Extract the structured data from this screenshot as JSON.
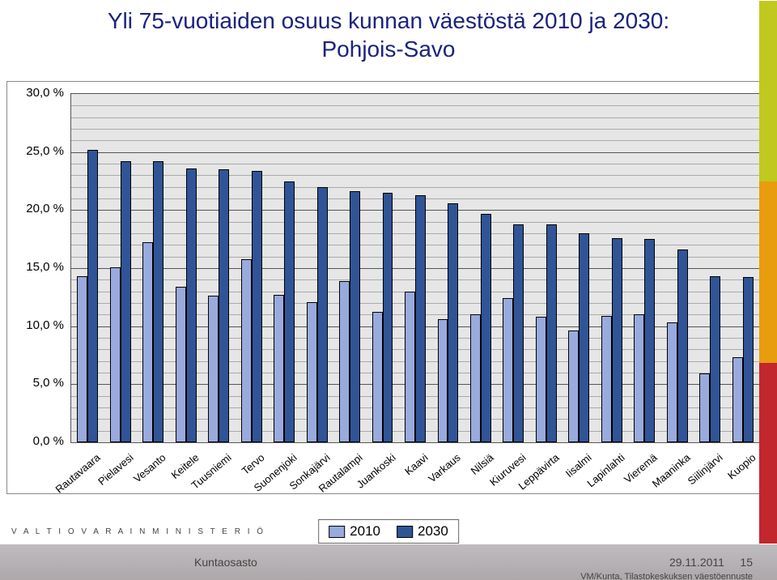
{
  "title_line1": "Yli 75-vuotiaiden osuus kunnan väestöstä 2010 ja 2030:",
  "title_line2": "Pohjois-Savo",
  "logo_text": "V A L T I O V A R A I N M I N I S T E R I Ö",
  "footer_left": "Kuntaosasto",
  "footer_date": "29.11.2011",
  "footer_page": "15",
  "footer_source": "VM/Kunta, Tilastokeskuksen väestöennuste",
  "chart": {
    "type": "bar",
    "y_min": 0,
    "y_max": 30,
    "y_tick_step": 5,
    "y_tick_labels": [
      "0,0 %",
      "5,0 %",
      "10,0 %",
      "15,0 %",
      "20,0 %",
      "25,0 %",
      "30,0 %"
    ],
    "y_minor_ticks": [
      1,
      2,
      3,
      4,
      6,
      7,
      8,
      9,
      11,
      12,
      13,
      14,
      16,
      17,
      18,
      19,
      21,
      22,
      23,
      24,
      26,
      27,
      28,
      29
    ],
    "plot_bg": "#e6e6e6",
    "axis_color": "#555555",
    "series": [
      {
        "label": "2010",
        "color": "#99aadd"
      },
      {
        "label": "2030",
        "color": "#305496"
      }
    ],
    "categories": [
      {
        "name": "Rautavaara",
        "v2010": 14.3,
        "v2030": 25.2
      },
      {
        "name": "Pielavesi",
        "v2010": 15.1,
        "v2030": 24.2
      },
      {
        "name": "Vesanto",
        "v2010": 17.2,
        "v2030": 24.2
      },
      {
        "name": "Keitele",
        "v2010": 13.4,
        "v2030": 23.6
      },
      {
        "name": "Tuusniemi",
        "v2010": 12.6,
        "v2030": 23.5
      },
      {
        "name": "Tervo",
        "v2010": 15.8,
        "v2030": 23.4
      },
      {
        "name": "Suonenjoki",
        "v2010": 12.7,
        "v2030": 22.5
      },
      {
        "name": "Sonkajärvi",
        "v2010": 12.1,
        "v2030": 22.0
      },
      {
        "name": "Rautalampi",
        "v2010": 13.9,
        "v2030": 21.6
      },
      {
        "name": "Juankoski",
        "v2010": 11.2,
        "v2030": 21.5
      },
      {
        "name": "Kaavi",
        "v2010": 13.0,
        "v2030": 21.3
      },
      {
        "name": "Varkaus",
        "v2010": 10.6,
        "v2030": 20.6
      },
      {
        "name": "Nilsiä",
        "v2010": 11.0,
        "v2030": 19.7
      },
      {
        "name": "Kiuruvesi",
        "v2010": 12.4,
        "v2030": 18.8
      },
      {
        "name": "Leppävirta",
        "v2010": 10.8,
        "v2030": 18.8
      },
      {
        "name": "Iisalmi",
        "v2010": 9.6,
        "v2030": 18.0
      },
      {
        "name": "Lapinlahti",
        "v2010": 10.9,
        "v2030": 17.6
      },
      {
        "name": "Vieremä",
        "v2010": 11.0,
        "v2030": 17.5
      },
      {
        "name": "Maaninka",
        "v2010": 10.3,
        "v2030": 16.6
      },
      {
        "name": "Siilinjärvi",
        "v2010": 5.9,
        "v2030": 14.3
      },
      {
        "name": "Kuopio",
        "v2010": 7.3,
        "v2030": 14.2
      }
    ]
  }
}
